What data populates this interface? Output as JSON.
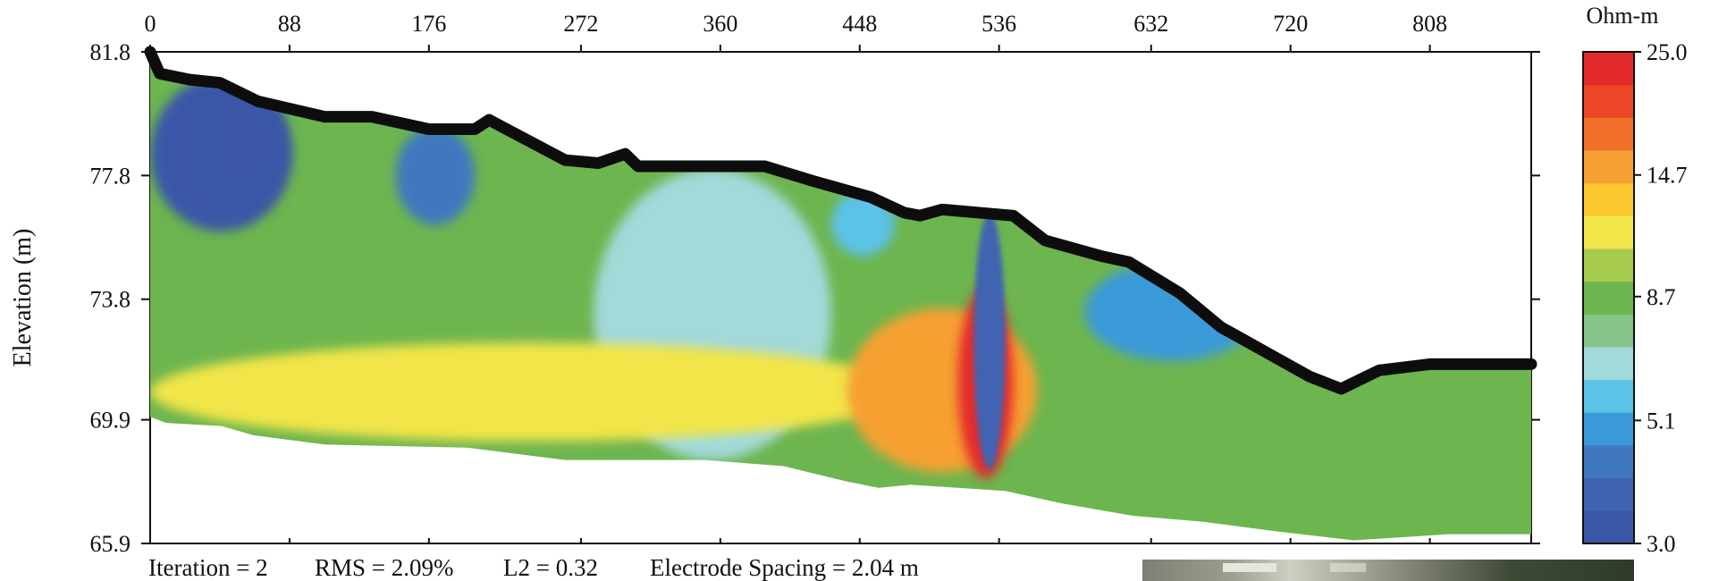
{
  "chart_data": {
    "type": "heatmap",
    "ylabel": "Elevation (m)",
    "x_ticks": [
      "0",
      "88",
      "176",
      "272",
      "360",
      "448",
      "536",
      "632",
      "720",
      "808"
    ],
    "x_tick_values": [
      0,
      88,
      176,
      272,
      360,
      448,
      536,
      632,
      720,
      808
    ],
    "y_ticks": [
      "81.8",
      "77.8",
      "73.8",
      "69.9",
      "65.9"
    ],
    "y_tick_values": [
      81.8,
      77.8,
      73.8,
      69.9,
      65.9
    ],
    "xlim": [
      0,
      872
    ],
    "ylim": [
      65.9,
      81.8
    ],
    "colorbar": {
      "unit": "Ohm-m",
      "tick_labels": [
        "25.0",
        "14.7",
        "8.7",
        "5.1",
        "3.0"
      ],
      "tick_values": [
        25.0,
        14.7,
        8.7,
        5.1,
        3.0
      ],
      "colors": [
        "#3a57a7",
        "#3f63b2",
        "#3f78c0",
        "#3a9ad8",
        "#5cc2e8",
        "#a2d9d9",
        "#86c48a",
        "#6db54f",
        "#a7cb4d",
        "#f1e54a",
        "#fbc72d",
        "#f6a033",
        "#f07029",
        "#ec4628",
        "#e32a2a"
      ]
    },
    "surface_profile": [
      [
        0,
        81.8
      ],
      [
        6,
        81.1
      ],
      [
        25,
        80.9
      ],
      [
        44,
        80.8
      ],
      [
        68,
        80.2
      ],
      [
        110,
        79.7
      ],
      [
        140,
        79.7
      ],
      [
        176,
        79.3
      ],
      [
        205,
        79.3
      ],
      [
        214,
        79.6
      ],
      [
        225,
        79.3
      ],
      [
        262,
        78.3
      ],
      [
        283,
        78.2
      ],
      [
        300,
        78.5
      ],
      [
        308,
        78.1
      ],
      [
        340,
        78.1
      ],
      [
        388,
        78.1
      ],
      [
        420,
        77.6
      ],
      [
        455,
        77.1
      ],
      [
        476,
        76.6
      ],
      [
        486,
        76.5
      ],
      [
        500,
        76.7
      ],
      [
        545,
        76.5
      ],
      [
        565,
        75.7
      ],
      [
        600,
        75.2
      ],
      [
        618,
        75.0
      ],
      [
        650,
        74.0
      ],
      [
        676,
        72.9
      ],
      [
        704,
        72.1
      ],
      [
        732,
        71.3
      ],
      [
        752,
        70.9
      ],
      [
        776,
        71.5
      ],
      [
        808,
        71.7
      ],
      [
        872,
        71.7
      ]
    ],
    "bottom_profile": [
      [
        0,
        70.0
      ],
      [
        10,
        69.8
      ],
      [
        45,
        69.7
      ],
      [
        65,
        69.4
      ],
      [
        110,
        69.1
      ],
      [
        200,
        69.0
      ],
      [
        262,
        68.6
      ],
      [
        350,
        68.6
      ],
      [
        400,
        68.4
      ],
      [
        440,
        67.9
      ],
      [
        460,
        67.7
      ],
      [
        480,
        67.8
      ],
      [
        540,
        67.6
      ],
      [
        575,
        67.2
      ],
      [
        620,
        66.8
      ],
      [
        665,
        66.6
      ],
      [
        710,
        66.3
      ],
      [
        760,
        66.0
      ],
      [
        790,
        66.1
      ],
      [
        820,
        66.2
      ],
      [
        872,
        66.2
      ]
    ],
    "anomalies": [
      {
        "x": [
          0,
          90
        ],
        "z": [
          76.0,
          81.0
        ],
        "value": 3.2
      },
      {
        "x": [
          30,
          85
        ],
        "z": [
          77.0,
          80.6
        ],
        "value": 3.0
      },
      {
        "x": [
          155,
          205
        ],
        "z": [
          76.2,
          79.4
        ],
        "value": 4.2
      },
      {
        "x": [
          510,
          545
        ],
        "z": [
          68.0,
          74.2
        ],
        "value": 24.0
      },
      {
        "x": [
          440,
          560
        ],
        "z": [
          68.2,
          73.5
        ],
        "value": 15.5
      },
      {
        "x": [
          520,
          540
        ],
        "z": [
          68.3,
          76.6
        ],
        "value": 3.5
      },
      {
        "x": [
          430,
          470
        ],
        "z": [
          75.2,
          77.3
        ],
        "value": 5.5
      },
      {
        "x": [
          590,
          700
        ],
        "z": [
          71.8,
          75.0
        ],
        "value": 4.8
      },
      {
        "x": [
          0,
          480
        ],
        "z": [
          69.2,
          72.4
        ],
        "value": 11.8
      },
      {
        "x": [
          280,
          430
        ],
        "z": [
          68.6,
          78.0
        ],
        "value": 6.6
      }
    ],
    "annotation": {
      "iteration": "Iteration = 2",
      "rms": "RMS = 2.09%",
      "l2": "L2 = 0.32",
      "spacing": "Electrode Spacing = 2.04 m"
    }
  }
}
